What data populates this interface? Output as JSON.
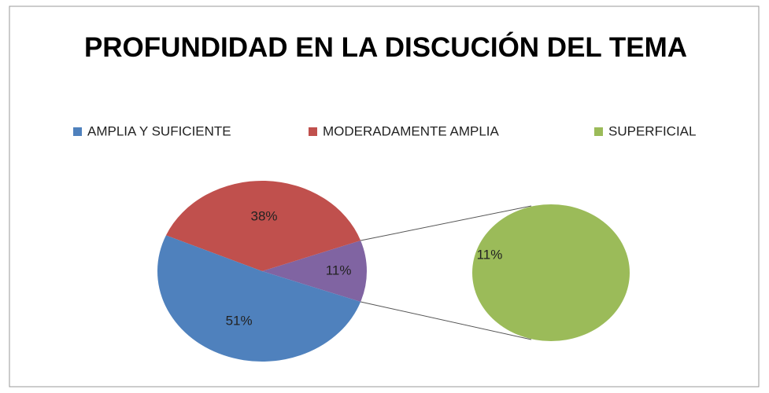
{
  "chart_data": {
    "type": "pie-of-pie",
    "title": "PROFUNDIDAD EN LA DISCUCIÓN DEL TEMA",
    "categories": [
      "AMPLIA Y SUFICIENTE",
      "MODERADAMENTE AMPLIA",
      "SUPERFICIAL"
    ],
    "values": [
      51,
      38,
      11
    ],
    "value_labels": [
      "51%",
      "38%",
      "11%"
    ],
    "colors": [
      "#4f81bd",
      "#c0504d",
      "#9bbb59"
    ],
    "other_color": "#8064a2",
    "legend": "top"
  }
}
